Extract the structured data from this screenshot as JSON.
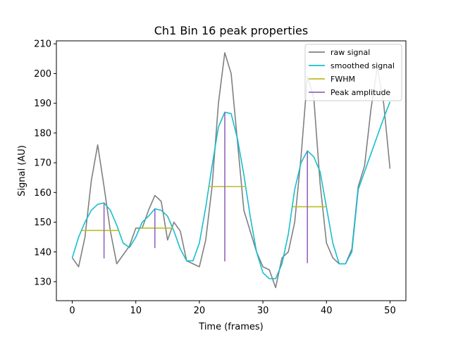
{
  "chart_data": {
    "type": "line",
    "title": "Ch1 Bin 16 peak properties",
    "xlabel": "Time (frames)",
    "ylabel": "Signal (AU)",
    "xlim": [
      -2.5,
      52.5
    ],
    "ylim": [
      123.6,
      211
    ],
    "xticks": [
      0,
      10,
      20,
      30,
      40,
      50
    ],
    "yticks": [
      130,
      140,
      150,
      160,
      170,
      180,
      190,
      200,
      210
    ],
    "grid": false,
    "legend_position": "top-right",
    "series": [
      {
        "name": "raw signal",
        "color": "#808080",
        "x": [
          0,
          1,
          2,
          3,
          4,
          5,
          6,
          7,
          8,
          9,
          10,
          11,
          12,
          13,
          14,
          15,
          16,
          17,
          18,
          19,
          20,
          21,
          22,
          23,
          24,
          25,
          26,
          27,
          28,
          29,
          30,
          31,
          32,
          33,
          34,
          35,
          36,
          37,
          38,
          39,
          40,
          41,
          42,
          43,
          44,
          45,
          46,
          47,
          48,
          49,
          50
        ],
        "y": [
          138,
          135,
          145,
          164,
          176,
          162,
          147,
          136,
          139,
          142,
          148,
          148,
          154,
          159,
          157,
          144,
          150,
          147,
          137,
          136,
          135,
          144,
          162,
          190,
          207,
          200,
          177,
          154,
          147,
          140,
          135,
          134,
          128,
          138,
          140,
          150,
          172,
          199,
          192,
          163,
          143,
          138,
          136,
          136,
          141,
          162,
          169,
          188,
          202,
          190,
          168
        ]
      },
      {
        "name": "smoothed signal",
        "color": "#17becf",
        "x": [
          0,
          1,
          2,
          3,
          4,
          5,
          6,
          7,
          8,
          9,
          10,
          11,
          12,
          13,
          14,
          15,
          16,
          17,
          18,
          19,
          20,
          21,
          22,
          23,
          24,
          25,
          26,
          27,
          28,
          29,
          30,
          31,
          32,
          33,
          34,
          35,
          36,
          37,
          38,
          39,
          40,
          41,
          42,
          43,
          44,
          45,
          46,
          47,
          48,
          49,
          50
        ],
        "y": [
          138,
          145,
          150,
          154,
          156,
          156.5,
          154,
          149,
          143,
          141.5,
          145,
          150,
          152,
          154.5,
          154,
          152,
          147,
          141,
          137,
          137,
          143,
          155,
          169,
          182,
          187,
          186.5,
          178,
          166,
          152,
          140,
          133,
          131,
          131,
          136,
          146,
          161,
          170,
          174,
          172,
          167,
          155,
          143,
          136,
          136,
          140,
          161,
          167,
          173,
          179,
          185,
          190.5
        ]
      },
      {
        "name": "FWHM",
        "color": "#bcbd22",
        "segments": [
          {
            "x0": 1.5,
            "x1": 7.3,
            "y": 147.2
          },
          {
            "x0": 10.7,
            "x1": 15.8,
            "y": 148
          },
          {
            "x0": 21.5,
            "x1": 27.3,
            "y": 162
          },
          {
            "x0": 34.7,
            "x1": 40.0,
            "y": 155.2
          }
        ]
      },
      {
        "name": "Peak amplitude",
        "color": "#9467bd",
        "segments": [
          {
            "x": 5,
            "y0": 137.8,
            "y1": 156.5
          },
          {
            "x": 13,
            "y0": 141.3,
            "y1": 154.5
          },
          {
            "x": 24,
            "y0": 136.8,
            "y1": 187
          },
          {
            "x": 37,
            "y0": 136.2,
            "y1": 174
          }
        ]
      }
    ]
  }
}
